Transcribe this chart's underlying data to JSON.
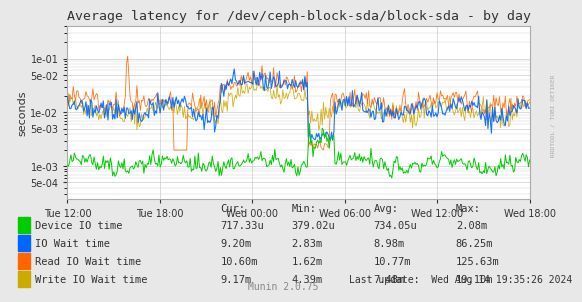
{
  "title": "Average latency for /dev/ceph-block-sda/block-sda - by day",
  "ylabel": "seconds",
  "background_color": "#e8e8e8",
  "plot_bg_color": "#ffffff",
  "grid_color": "#cccccc",
  "x_ticks_labels": [
    "Tue 12:00",
    "Tue 18:00",
    "Wed 00:00",
    "Wed 06:00",
    "Wed 12:00",
    "Wed 18:00"
  ],
  "ylim_min": 0.00025,
  "ylim_max": 0.4,
  "yticks": [
    0.0005,
    0.001,
    0.005,
    0.01,
    0.05,
    0.1
  ],
  "legend_entries": [
    {
      "label": "Device IO time",
      "color": "#00cc00"
    },
    {
      "label": "IO Wait time",
      "color": "#0066ff"
    },
    {
      "label": "Read IO Wait time",
      "color": "#ff6600"
    },
    {
      "label": "Write IO Wait time",
      "color": "#ccaa00"
    }
  ],
  "table_headers": [
    "",
    "Cur:",
    "Min:",
    "Avg:",
    "Max:"
  ],
  "table_rows": [
    [
      "Device IO time",
      "717.33u",
      "379.02u",
      "734.05u",
      "2.08m"
    ],
    [
      "IO Wait time",
      "9.20m",
      "2.83m",
      "8.98m",
      "86.25m"
    ],
    [
      "Read IO Wait time",
      "10.60m",
      "1.62m",
      "10.77m",
      "125.63m"
    ],
    [
      "Write IO Wait time",
      "9.17m",
      "4.39m",
      "7.48m",
      "19.10m"
    ]
  ],
  "last_update": "Last update:  Wed Aug 14 19:35:26 2024",
  "munin_version": "Munin 2.0.75",
  "watermark": "RRDTOOL / TOBI OETIKER",
  "n_points": 400
}
